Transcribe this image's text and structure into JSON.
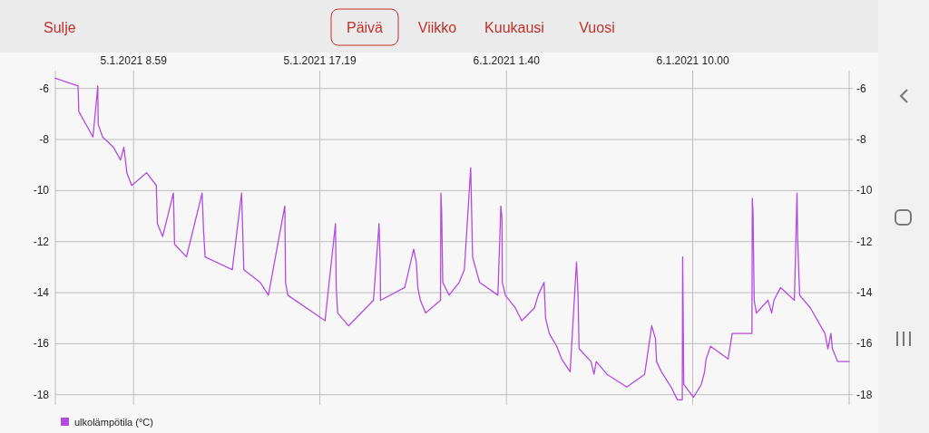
{
  "chart_data": {
    "type": "line",
    "annotations": [
      "Sulje",
      "Päivä",
      "Viikko",
      "Kuukausi",
      "Vuosi"
    ],
    "xlim": [
      "2021-01-05T05:29",
      "2021-01-06T17:00"
    ],
    "xticks": [
      {
        "value": "2021-01-05T08:59",
        "label": "5.1.2021 8.59"
      },
      {
        "value": "2021-01-05T17:19",
        "label": "5.1.2021 17.19"
      },
      {
        "value": "2021-01-06T01:40",
        "label": "6.1.2021 1.40"
      },
      {
        "value": "2021-01-06T10:00",
        "label": "6.1.2021 10.00"
      }
    ],
    "ylim": [
      -18.4,
      -5.3
    ],
    "yticks": [
      -6,
      -8,
      -10,
      -12,
      -14,
      -16,
      -18
    ],
    "y2lim": [
      -18.4,
      -5.3
    ],
    "y2ticks": [
      -6,
      -8,
      -10,
      -12,
      -14,
      -16,
      -18
    ],
    "grid": true,
    "legend": "bottom left",
    "line_style": "solid",
    "marker": "none",
    "series": [
      {
        "name": "ulkolämpötila (°C)",
        "color": "#b44be1",
        "x": [
          "2021-01-05T05:29",
          "2021-01-05T06:30",
          "2021-01-05T06:32",
          "2021-01-05T07:10",
          "2021-01-05T07:23",
          "2021-01-05T07:24",
          "2021-01-05T07:36",
          "2021-01-05T08:05",
          "2021-01-05T08:24",
          "2021-01-05T08:33",
          "2021-01-05T08:41",
          "2021-01-05T08:54",
          "2021-01-05T09:34",
          "2021-01-05T10:00",
          "2021-01-05T10:03",
          "2021-01-05T10:17",
          "2021-01-05T10:46",
          "2021-01-05T10:49",
          "2021-01-05T11:21",
          "2021-01-05T12:03",
          "2021-01-05T12:07",
          "2021-01-05T12:11",
          "2021-01-05T13:24",
          "2021-01-05T13:49",
          "2021-01-05T13:52",
          "2021-01-05T13:55",
          "2021-01-05T14:39",
          "2021-01-05T15:01",
          "2021-01-05T15:45",
          "2021-01-05T15:47",
          "2021-01-05T15:53",
          "2021-01-05T17:33",
          "2021-01-05T18:01",
          "2021-01-05T18:03",
          "2021-01-05T18:07",
          "2021-01-05T18:36",
          "2021-01-05T19:43",
          "2021-01-05T19:58",
          "2021-01-05T20:01",
          "2021-01-05T20:02",
          "2021-01-05T21:07",
          "2021-01-05T21:31",
          "2021-01-05T21:38",
          "2021-01-05T21:42",
          "2021-01-05T21:49",
          "2021-01-05T22:03",
          "2021-01-05T22:43",
          "2021-01-05T22:44",
          "2021-01-05T22:46",
          "2021-01-05T22:49",
          "2021-01-05T23:06",
          "2021-01-05T23:33",
          "2021-01-05T23:47",
          "2021-01-06T00:04",
          "2021-01-06T00:07",
          "2021-01-06T00:09",
          "2021-01-06T00:28",
          "2021-01-06T01:17",
          "2021-01-06T01:25",
          "2021-01-06T01:28",
          "2021-01-06T01:29",
          "2021-01-06T01:37",
          "2021-01-06T02:04",
          "2021-01-06T02:21",
          "2021-01-06T02:55",
          "2021-01-06T03:05",
          "2021-01-06T03:21",
          "2021-01-06T03:25",
          "2021-01-06T03:35",
          "2021-01-06T03:55",
          "2021-01-06T04:08",
          "2021-01-06T04:31",
          "2021-01-06T04:48",
          "2021-01-06T04:52",
          "2021-01-06T04:55",
          "2021-01-06T05:27",
          "2021-01-06T05:35",
          "2021-01-06T05:41",
          "2021-01-06T06:10",
          "2021-01-06T07:03",
          "2021-01-06T07:51",
          "2021-01-06T07:56",
          "2021-01-06T08:10",
          "2021-01-06T08:20",
          "2021-01-06T08:23",
          "2021-01-06T08:36",
          "2021-01-06T09:02",
          "2021-01-06T09:19",
          "2021-01-06T09:32",
          "2021-01-06T09:33",
          "2021-01-06T09:36",
          "2021-01-06T10:02",
          "2021-01-06T10:23",
          "2021-01-06T10:32",
          "2021-01-06T10:36",
          "2021-01-06T10:48",
          "2021-01-06T11:35",
          "2021-01-06T11:46",
          "2021-01-06T12:39",
          "2021-01-06T12:40",
          "2021-01-06T12:42",
          "2021-01-06T12:45",
          "2021-01-06T12:51",
          "2021-01-06T13:22",
          "2021-01-06T13:32",
          "2021-01-06T13:38",
          "2021-01-06T13:56",
          "2021-01-06T14:33",
          "2021-01-06T14:40",
          "2021-01-06T14:42",
          "2021-01-06T14:47",
          "2021-01-06T15:16",
          "2021-01-06T15:55",
          "2021-01-06T16:03",
          "2021-01-06T16:11",
          "2021-01-06T16:15",
          "2021-01-06T16:29",
          "2021-01-06T17:00"
        ],
        "values": [
          -5.6,
          -5.9,
          -6.9,
          -7.9,
          -5.9,
          -7.4,
          -7.9,
          -8.3,
          -8.8,
          -8.3,
          -9.3,
          -9.8,
          -9.3,
          -9.8,
          -11.3,
          -11.8,
          -10.1,
          -12.1,
          -12.6,
          -10.1,
          -11.6,
          -12.6,
          -13.1,
          -10.1,
          -11.6,
          -13.1,
          -13.6,
          -14.1,
          -10.6,
          -13.6,
          -14.1,
          -15.1,
          -11.3,
          -13.8,
          -14.8,
          -15.3,
          -14.3,
          -11.3,
          -12.8,
          -14.3,
          -13.8,
          -12.3,
          -12.8,
          -13.8,
          -14.3,
          -14.8,
          -14.3,
          -10.1,
          -10.8,
          -13.6,
          -14.1,
          -13.6,
          -13.1,
          -9.1,
          -11.1,
          -12.6,
          -13.6,
          -14.1,
          -10.6,
          -11.1,
          -13.6,
          -14.1,
          -14.6,
          -15.1,
          -14.6,
          -14.1,
          -13.6,
          -15.0,
          -15.6,
          -16.1,
          -16.6,
          -17.1,
          -12.8,
          -14.0,
          -16.2,
          -16.7,
          -17.2,
          -16.7,
          -17.2,
          -17.7,
          -17.2,
          -16.7,
          -15.3,
          -15.8,
          -16.7,
          -17.1,
          -17.7,
          -18.2,
          -18.2,
          -12.6,
          -17.6,
          -18.1,
          -17.6,
          -17.1,
          -16.6,
          -16.1,
          -16.6,
          -15.6,
          -15.6,
          -10.3,
          -10.9,
          -14.3,
          -14.8,
          -14.3,
          -14.8,
          -14.3,
          -13.8,
          -14.3,
          -10.1,
          -12.0,
          -14.1,
          -14.6,
          -15.6,
          -16.2,
          -15.6,
          -16.2,
          -16.7,
          -16.7
        ]
      }
    ]
  }
}
